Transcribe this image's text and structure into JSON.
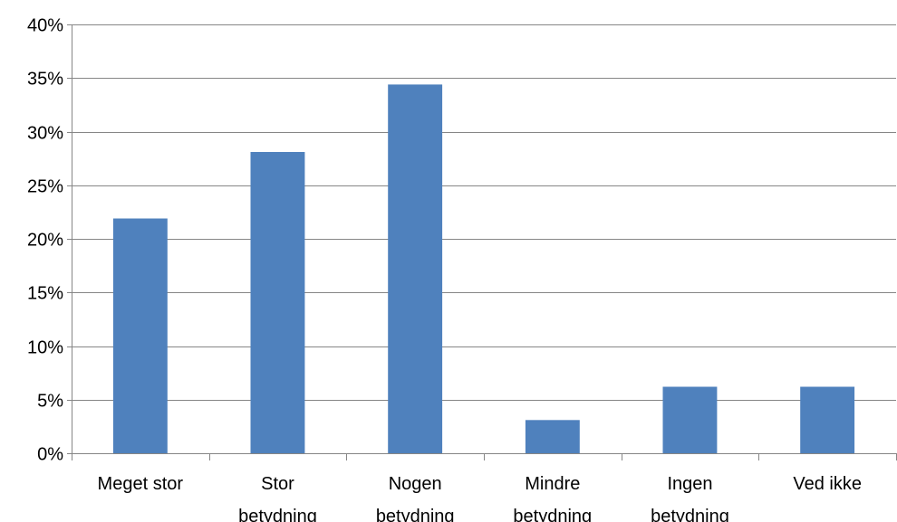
{
  "chart_data": {
    "type": "bar",
    "title": "",
    "xlabel": "",
    "ylabel": "",
    "categories": [
      [
        "Meget stor"
      ],
      [
        "Stor",
        "betydning"
      ],
      [
        "Nogen",
        "betydning"
      ],
      [
        "Mindre",
        "betydning"
      ],
      [
        "Ingen",
        "betydning"
      ],
      [
        "Ved ikke"
      ]
    ],
    "values": [
      0.219,
      0.281,
      0.344,
      0.031,
      0.062,
      0.062
    ],
    "ylim": [
      0,
      0.4
    ],
    "yticks": [
      {
        "value": 0.0,
        "label": "0%"
      },
      {
        "value": 0.05,
        "label": "5%"
      },
      {
        "value": 0.1,
        "label": "10%"
      },
      {
        "value": 0.15,
        "label": "15%"
      },
      {
        "value": 0.2,
        "label": "20%"
      },
      {
        "value": 0.25,
        "label": "25%"
      },
      {
        "value": 0.3,
        "label": "30%"
      },
      {
        "value": 0.35,
        "label": "35%"
      },
      {
        "value": 0.4,
        "label": "40%"
      }
    ],
    "grid": true,
    "legend": "none",
    "bar_color": "#4F81BD",
    "grid_color": "#868686"
  }
}
